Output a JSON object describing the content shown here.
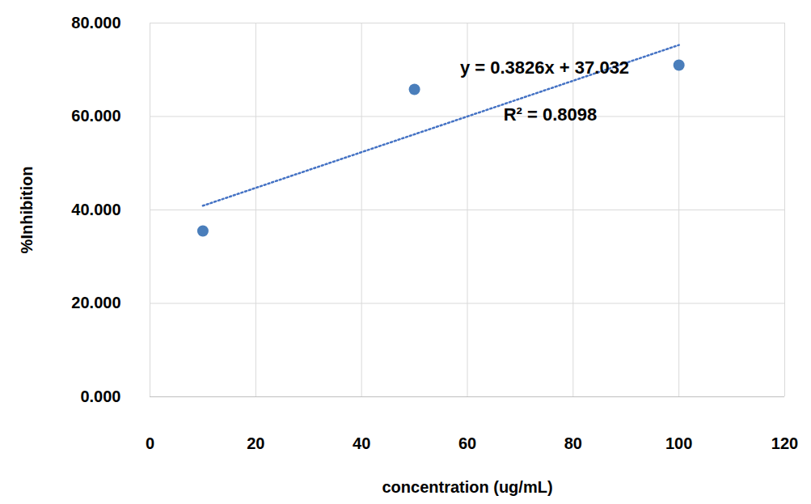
{
  "chart_data": {
    "type": "scatter",
    "x_label": "concentration (ug/mL)",
    "y_label": "%Inhibition",
    "x": [
      10,
      50,
      100
    ],
    "values": [
      35.5,
      65.8,
      71.0
    ],
    "color": "#4a7ebb",
    "marker": "circle",
    "trendline": {
      "x": [
        10,
        100
      ],
      "values": [
        40.9,
        75.3
      ],
      "color": "#4472c4",
      "line_style": "dotted"
    },
    "annotations": [
      "y = 0.3826x + 37.032",
      "R² = 0.8098"
    ],
    "xlim": [
      0,
      120
    ],
    "xticks": [
      0,
      20,
      40,
      60,
      80,
      100,
      120
    ],
    "ylim": [
      0,
      80
    ],
    "yticks": [
      {
        "value": 0,
        "label": "0.000"
      },
      {
        "value": 20,
        "label": "20.000"
      },
      {
        "value": 40,
        "label": "40.000"
      },
      {
        "value": 60,
        "label": "60.000"
      },
      {
        "value": 80,
        "label": "80.000"
      }
    ],
    "grid": true
  }
}
